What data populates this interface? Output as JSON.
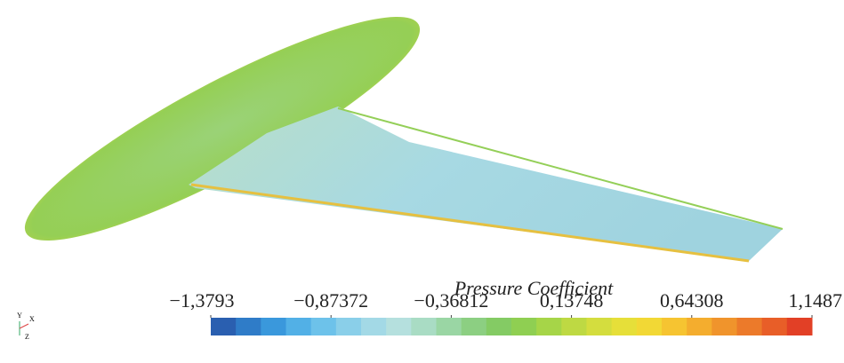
{
  "chart_data": {
    "type": "colorbar",
    "title": "Pressure Coefficient",
    "clim": [
      -1.3793,
      1.1487
    ],
    "ticks": [
      {
        "value": -1.3793,
        "label": "−1,3793"
      },
      {
        "value": -0.87372,
        "label": "−0,87372"
      },
      {
        "value": -0.36812,
        "label": "−0,36812"
      },
      {
        "value": 0.13748,
        "label": "0,13748"
      },
      {
        "value": 0.64308,
        "label": "0,64308"
      },
      {
        "value": 1.1487,
        "label": "1,1487"
      }
    ],
    "colors": [
      "#2a5fb0",
      "#2f7cc8",
      "#3a98dc",
      "#52b0e6",
      "#6dc2ea",
      "#8acfe9",
      "#a3d9e6",
      "#b5e0de",
      "#a9dcc4",
      "#9ad6a4",
      "#8ccf82",
      "#84cb64",
      "#8fcf52",
      "#a6d548",
      "#bed943",
      "#d4dd3e",
      "#e6df39",
      "#f2d835",
      "#f6c431",
      "#f4ad2e",
      "#f0942c",
      "#ec7a2a",
      "#e85e28",
      "#e24026"
    ],
    "axes_labels": [
      "Y",
      "X",
      "Z"
    ]
  }
}
